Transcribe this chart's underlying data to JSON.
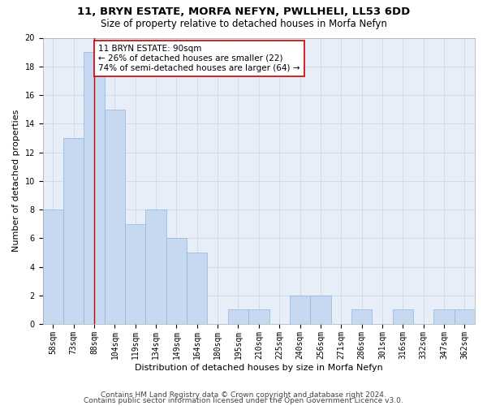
{
  "title1": "11, BRYN ESTATE, MORFA NEFYN, PWLLHELI, LL53 6DD",
  "title2": "Size of property relative to detached houses in Morfa Nefyn",
  "xlabel": "Distribution of detached houses by size in Morfa Nefyn",
  "ylabel": "Number of detached properties",
  "categories": [
    "58sqm",
    "73sqm",
    "88sqm",
    "104sqm",
    "119sqm",
    "134sqm",
    "149sqm",
    "164sqm",
    "180sqm",
    "195sqm",
    "210sqm",
    "225sqm",
    "240sqm",
    "256sqm",
    "271sqm",
    "286sqm",
    "301sqm",
    "316sqm",
    "332sqm",
    "347sqm",
    "362sqm"
  ],
  "values": [
    8,
    13,
    19,
    15,
    7,
    8,
    6,
    5,
    0,
    1,
    1,
    0,
    2,
    2,
    0,
    1,
    0,
    1,
    0,
    1,
    1
  ],
  "bar_color": "#c6d9f0",
  "bar_edge_color": "#8db4e2",
  "red_line_index": 2,
  "annotation_line1": "11 BRYN ESTATE: 90sqm",
  "annotation_line2": "← 26% of detached houses are smaller (22)",
  "annotation_line3": "74% of semi-detached houses are larger (64) →",
  "annotation_box_color": "#ffffff",
  "annotation_box_edge_color": "#cc0000",
  "red_line_color": "#cc0000",
  "grid_color": "#d0d8e8",
  "background_color": "#e8eef8",
  "ylim": [
    0,
    20
  ],
  "yticks": [
    0,
    2,
    4,
    6,
    8,
    10,
    12,
    14,
    16,
    18,
    20
  ],
  "footer1": "Contains HM Land Registry data © Crown copyright and database right 2024.",
  "footer2": "Contains public sector information licensed under the Open Government Licence v3.0.",
  "title_fontsize": 9.5,
  "subtitle_fontsize": 8.5,
  "axis_label_fontsize": 8,
  "tick_fontsize": 7,
  "annotation_fontsize": 7.5,
  "footer_fontsize": 6.5
}
